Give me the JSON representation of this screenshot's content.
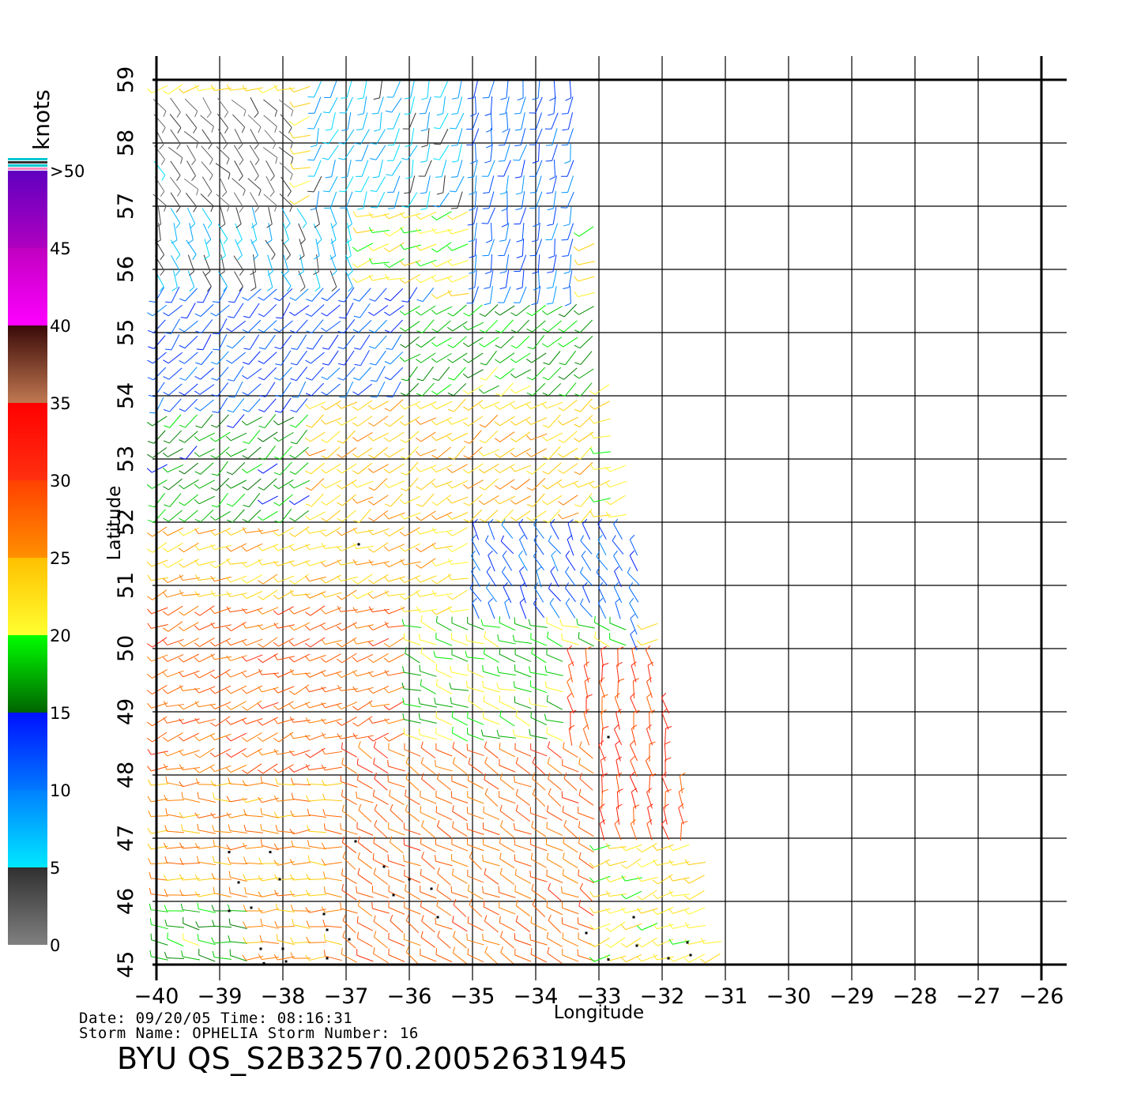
{
  "chart_data": {
    "type": "scatter",
    "subtype": "wind-vector-field",
    "xlabel": "Longitude",
    "ylabel": "Latitude",
    "xlim": [
      -40,
      -26
    ],
    "ylim": [
      45,
      59
    ],
    "x_ticks": [
      "-40",
      "-39",
      "-38",
      "-37",
      "-36",
      "-35",
      "-34",
      "-33",
      "-32",
      "-31",
      "-30",
      "-29",
      "-28",
      "-27",
      "-26"
    ],
    "y_ticks": [
      "45",
      "46",
      "47",
      "48",
      "49",
      "50",
      "51",
      "52",
      "53",
      "54",
      "55",
      "56",
      "57",
      "58",
      "59"
    ],
    "grid": true,
    "swath_polygon": [
      [
        -40,
        45
      ],
      [
        -31.1,
        45
      ],
      [
        -32.1,
        50
      ],
      [
        -33.0,
        54.5
      ],
      [
        -33.4,
        59
      ],
      [
        -40,
        59
      ]
    ],
    "colorbar": {
      "title": "knots",
      "labels": [
        "0",
        "5",
        "10",
        "15",
        "20",
        "25",
        "30",
        "35",
        "40",
        "45",
        ">50"
      ],
      "range": [
        0,
        50
      ],
      "bins": [
        {
          "from": 0,
          "to": 5,
          "colors": [
            "#808080",
            "#303030"
          ]
        },
        {
          "from": 5,
          "to": 10,
          "colors": [
            "#00e8ff",
            "#0080ff"
          ]
        },
        {
          "from": 10,
          "to": 15,
          "colors": [
            "#0078ff",
            "#0010ff"
          ]
        },
        {
          "from": 15,
          "to": 20,
          "colors": [
            "#006400",
            "#00ff00"
          ]
        },
        {
          "from": 20,
          "to": 25,
          "colors": [
            "#ffff30",
            "#ffc000"
          ]
        },
        {
          "from": 25,
          "to": 30,
          "colors": [
            "#ff9000",
            "#ff4000"
          ]
        },
        {
          "from": 30,
          "to": 35,
          "colors": [
            "#ff3010",
            "#ff0000"
          ]
        },
        {
          "from": 35,
          "to": 40,
          "colors": [
            "#c07850",
            "#3a0a08"
          ]
        },
        {
          "from": 40,
          "to": 45,
          "colors": [
            "#ff00ff",
            "#c000c0"
          ]
        },
        {
          "from": 45,
          "to": 50,
          "colors": [
            "#b000c0",
            "#6000c0"
          ]
        }
      ],
      "top_stripes": [
        "#00c8d0",
        "#303030",
        "#00c8d0",
        "#ff88c0"
      ]
    },
    "wind_regions": [
      {
        "lon": [
          -40,
          -37.8
        ],
        "lat": [
          56.8,
          58.6
        ],
        "speed_kt": 3,
        "dir_deg": 140
      },
      {
        "lon": [
          -40,
          -36.8
        ],
        "lat": [
          55.5,
          57.0
        ],
        "speed_kt": 6,
        "dir_deg": 160
      },
      {
        "lon": [
          -37.5,
          -34.5
        ],
        "lat": [
          57.0,
          59.0
        ],
        "speed_kt": 7,
        "dir_deg": 200
      },
      {
        "lon": [
          -35.0,
          -33.3
        ],
        "lat": [
          55.5,
          59.0
        ],
        "speed_kt": 11,
        "dir_deg": 190
      },
      {
        "lon": [
          -40,
          -35.5
        ],
        "lat": [
          53.5,
          55.8
        ],
        "speed_kt": 12,
        "dir_deg": 220
      },
      {
        "lon": [
          -36.0,
          -33.0
        ],
        "lat": [
          53.5,
          55.5
        ],
        "speed_kt": 18,
        "dir_deg": 230
      },
      {
        "lon": [
          -40,
          -37.5
        ],
        "lat": [
          52.0,
          53.8
        ],
        "speed_kt": 17,
        "dir_deg": 230
      },
      {
        "lon": [
          -37.5,
          -33.0
        ],
        "lat": [
          52.0,
          54.0
        ],
        "speed_kt": 24,
        "dir_deg": 235
      },
      {
        "lon": [
          -35.0,
          -32.3
        ],
        "lat": [
          50.0,
          52.0
        ],
        "speed_kt": 12,
        "dir_deg": 330
      },
      {
        "lon": [
          -40,
          -35.5
        ],
        "lat": [
          50.8,
          52.0
        ],
        "speed_kt": 24,
        "dir_deg": 250
      },
      {
        "lon": [
          -40,
          -36.0
        ],
        "lat": [
          48.0,
          50.8
        ],
        "speed_kt": 28,
        "dir_deg": 250
      },
      {
        "lon": [
          -36.0,
          -32.5
        ],
        "lat": [
          48.5,
          50.5
        ],
        "speed_kt": 19,
        "dir_deg": 290
      },
      {
        "lon": [
          -33.5,
          -31.5
        ],
        "lat": [
          47.0,
          50.0
        ],
        "speed_kt": 30,
        "dir_deg": 350
      },
      {
        "lon": [
          -40,
          -37.0
        ],
        "lat": [
          45.0,
          48.0
        ],
        "speed_kt": 26,
        "dir_deg": 270
      },
      {
        "lon": [
          -37.0,
          -33.0
        ],
        "lat": [
          45.0,
          48.5
        ],
        "speed_kt": 28,
        "dir_deg": 300
      },
      {
        "lon": [
          -40,
          -38.5
        ],
        "lat": [
          45.0,
          46.0
        ],
        "speed_kt": 18,
        "dir_deg": 280
      }
    ],
    "rain_flags": [
      [
        -36.8,
        51.65
      ],
      [
        -32.85,
        48.6
      ],
      [
        -36.85,
        46.95
      ],
      [
        -38.85,
        46.78
      ],
      [
        -38.2,
        46.78
      ],
      [
        -38.05,
        46.35
      ],
      [
        -38.7,
        46.3
      ],
      [
        -36.4,
        46.55
      ],
      [
        -36.0,
        46.35
      ],
      [
        -35.65,
        46.2
      ],
      [
        -36.25,
        46.1
      ],
      [
        -38.85,
        45.85
      ],
      [
        -38.5,
        45.9
      ],
      [
        -37.35,
        45.8
      ],
      [
        -37.3,
        45.55
      ],
      [
        -35.55,
        45.75
      ],
      [
        -32.45,
        45.75
      ],
      [
        -33.2,
        45.5
      ],
      [
        -36.95,
        45.4
      ],
      [
        -38.35,
        45.25
      ],
      [
        -38.0,
        45.25
      ],
      [
        -32.4,
        45.3
      ],
      [
        -31.6,
        45.35
      ],
      [
        -31.55,
        45.15
      ],
      [
        -31.9,
        45.1
      ],
      [
        -37.3,
        45.1
      ],
      [
        -32.85,
        45.08
      ],
      [
        -37.95,
        45.05
      ],
      [
        -38.3,
        45.02
      ]
    ]
  },
  "header": {
    "date_line": "Date: 09/20/05   Time: 08:16:31",
    "storm_line": "Storm  Name:  OPHELIA   Storm  Number:  16"
  },
  "footer": {
    "title": "BYU  QS_S2B32570.20052631945"
  }
}
